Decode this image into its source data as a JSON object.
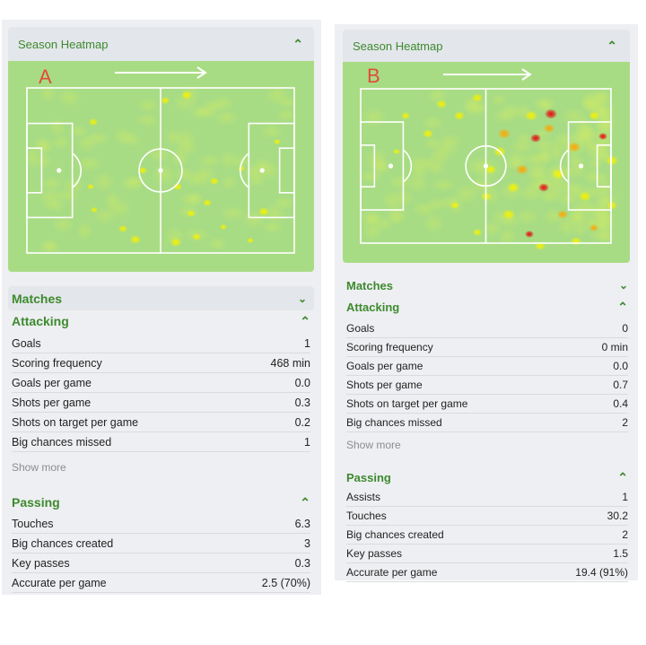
{
  "panel_a": {
    "letter": "A",
    "heatmap_title": "Season Heatmap",
    "matches_label": "Matches",
    "attacking": {
      "title": "Attacking",
      "rows": [
        {
          "label": "Goals",
          "value": "1"
        },
        {
          "label": "Scoring frequency",
          "value": "468 min"
        },
        {
          "label": "Goals per game",
          "value": "0.0"
        },
        {
          "label": "Shots per game",
          "value": "0.3"
        },
        {
          "label": "Shots on target per game",
          "value": "0.2"
        },
        {
          "label": "Big chances missed",
          "value": "1"
        }
      ]
    },
    "show_more": "Show more",
    "passing": {
      "title": "Passing",
      "rows": [
        {
          "label": "Touches",
          "value": "6.3"
        },
        {
          "label": "Big chances created",
          "value": "3"
        },
        {
          "label": "Key passes",
          "value": "0.3"
        },
        {
          "label": "Accurate per game",
          "value": "2.5 (70%)"
        }
      ]
    }
  },
  "panel_b": {
    "letter": "B",
    "heatmap_title": "Season Heatmap",
    "matches_label": "Matches",
    "attacking": {
      "title": "Attacking",
      "rows": [
        {
          "label": "Goals",
          "value": "0"
        },
        {
          "label": "Scoring frequency",
          "value": "0 min"
        },
        {
          "label": "Goals per game",
          "value": "0.0"
        },
        {
          "label": "Shots per game",
          "value": "0.7"
        },
        {
          "label": "Shots on target per game",
          "value": "0.4"
        },
        {
          "label": "Big chances missed",
          "value": "2"
        }
      ]
    },
    "show_more": "Show more",
    "passing": {
      "title": "Passing",
      "rows": [
        {
          "label": "Assists",
          "value": "1"
        },
        {
          "label": "Touches",
          "value": "30.2"
        },
        {
          "label": "Big chances created",
          "value": "2"
        },
        {
          "label": "Key passes",
          "value": "1.5"
        },
        {
          "label": "Accurate per game",
          "value": "19.4 (91%)"
        }
      ]
    }
  },
  "icons": {
    "collapse": "chevron-up-icon",
    "expand": "chevron-down-icon",
    "direction": "attack-direction-arrow-icon"
  },
  "colors": {
    "accent_green": "#3d8a2e",
    "pitch_green": "#a8dc84",
    "letter_red": "#e24b3c",
    "heat_yellow": "#f7f200",
    "heat_orange": "#ffa500",
    "heat_red": "#e8000b"
  }
}
